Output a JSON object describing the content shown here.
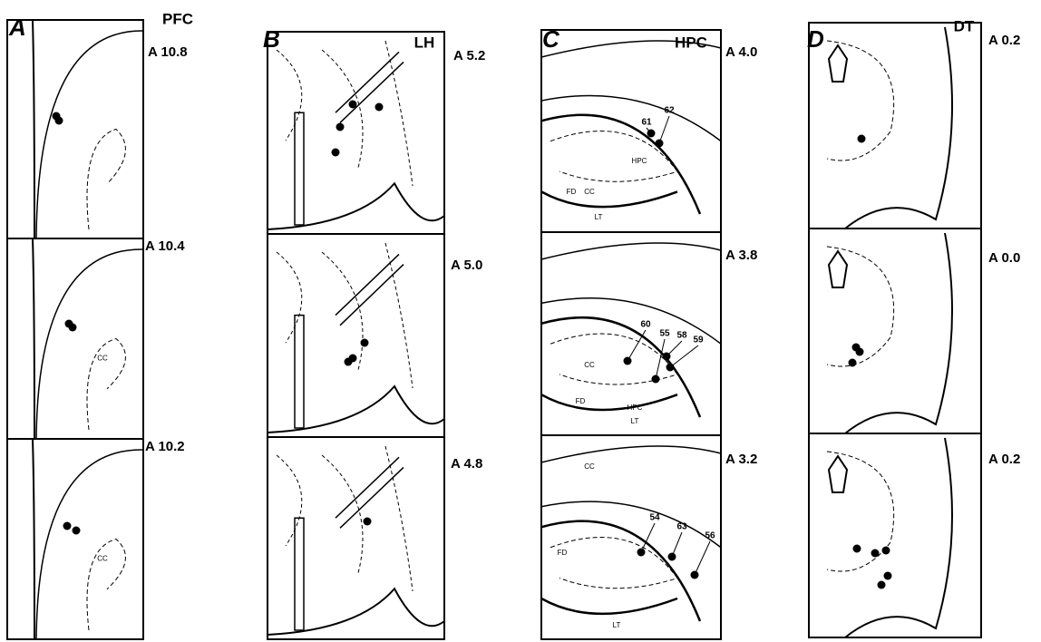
{
  "panels": [
    {
      "letter": "A",
      "region": "PFC",
      "sections": [
        {
          "label": "A 10.8"
        },
        {
          "label": "A 10.4",
          "areas": [
            "CC"
          ]
        },
        {
          "label": "A 10.2",
          "areas": [
            "CC"
          ]
        }
      ]
    },
    {
      "letter": "B",
      "region": "LH",
      "sections": [
        {
          "label": "A 5.2"
        },
        {
          "label": "A 5.0"
        },
        {
          "label": "A 4.8"
        }
      ]
    },
    {
      "letter": "C",
      "region": "HPC",
      "sections": [
        {
          "label": "A 4.0",
          "sites": [
            "61",
            "62"
          ],
          "areas": [
            "CC",
            "HPC",
            "FD",
            "LT"
          ]
        },
        {
          "label": "A 3.8",
          "sites": [
            "60",
            "55",
            "58",
            "59"
          ],
          "areas": [
            "CC",
            "HPC",
            "FD",
            "LT"
          ]
        },
        {
          "label": "A 3.2",
          "sites": [
            "54",
            "63",
            "56"
          ],
          "areas": [
            "CC",
            "FD",
            "LT"
          ]
        }
      ]
    },
    {
      "letter": "D",
      "region": "DT",
      "sections": [
        {
          "label": "A 0.2"
        },
        {
          "label": "A 0.0"
        },
        {
          "label": "A 0.2"
        }
      ]
    }
  ]
}
